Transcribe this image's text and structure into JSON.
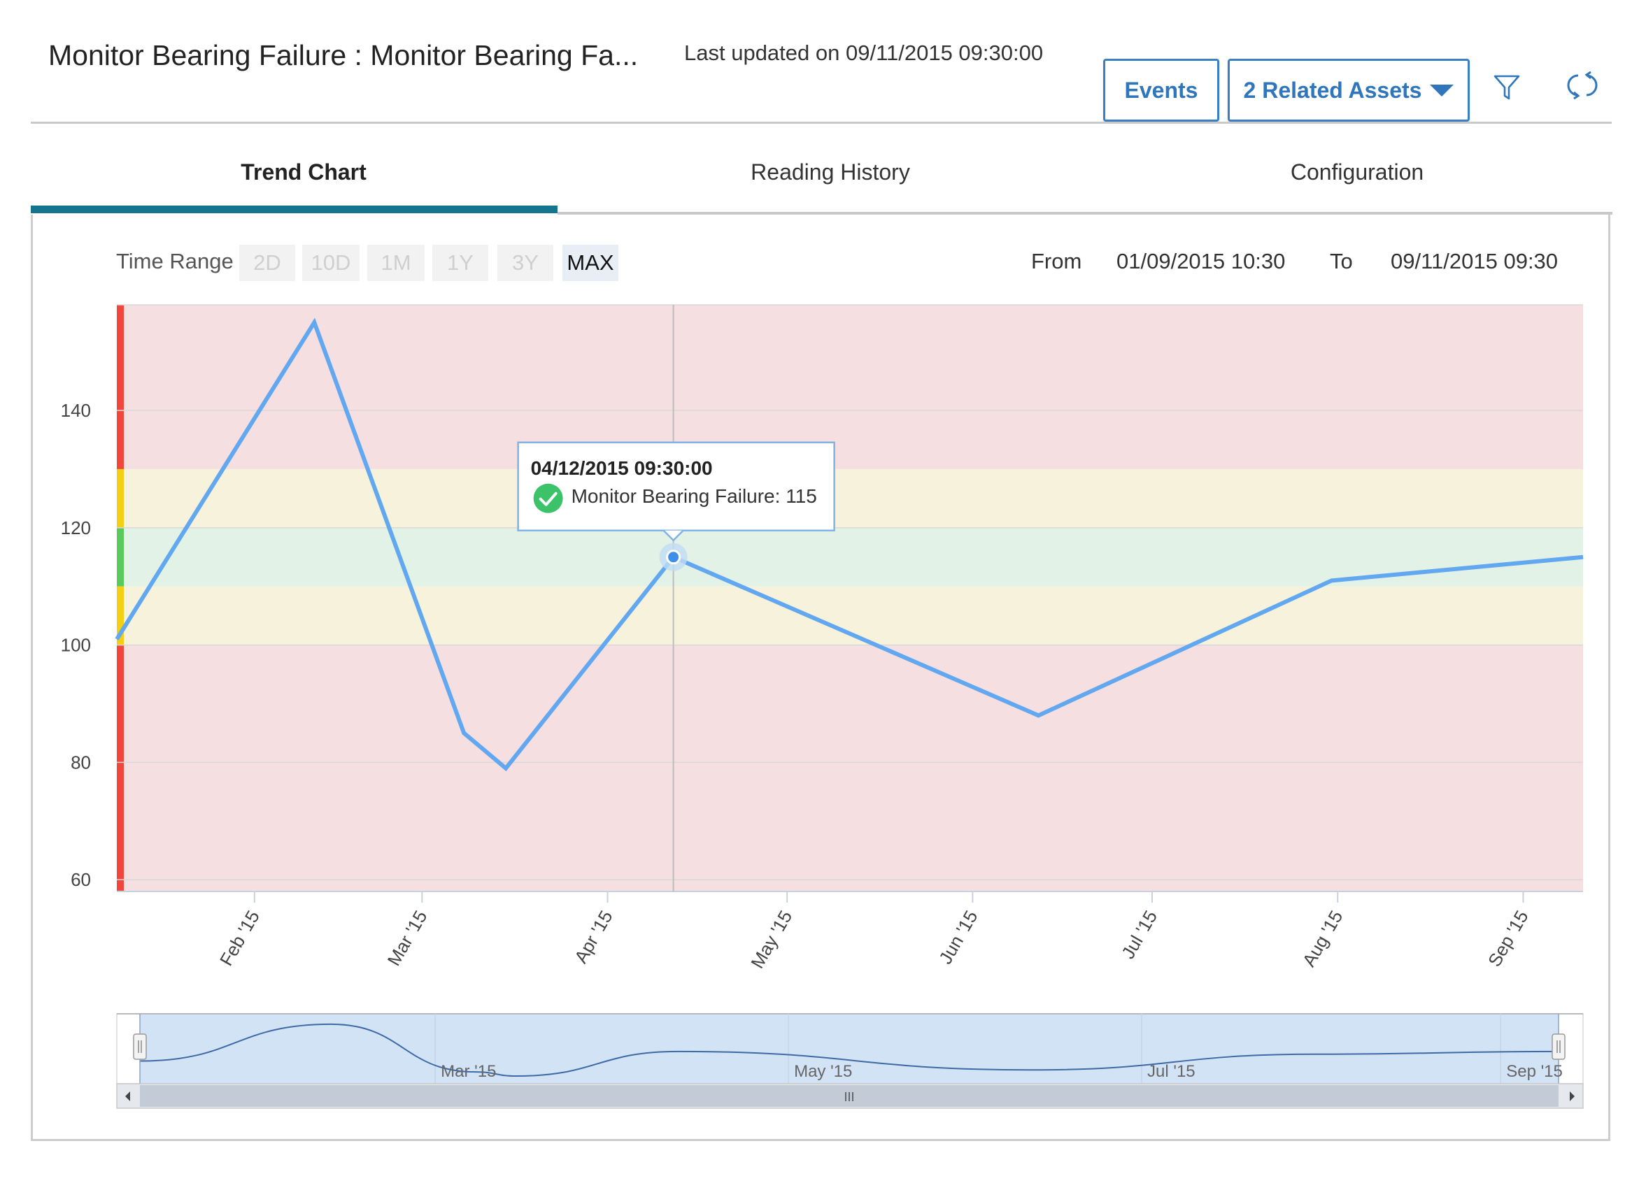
{
  "header": {
    "title": "Monitor Bearing Failure : Monitor Bearing Fa...",
    "last_updated": "Last updated on 09/11/2015 09:30:00",
    "events_label": "Events",
    "related_assets_label": "2 Related Assets",
    "filter_icon": "filter-icon",
    "refresh_icon": "refresh-icon"
  },
  "tabs": [
    {
      "label": "Trend Chart",
      "active": true
    },
    {
      "label": "Reading History",
      "active": false
    },
    {
      "label": "Configuration",
      "active": false
    }
  ],
  "time_range": {
    "label": "Time Range",
    "options": [
      {
        "label": "2D",
        "active": false
      },
      {
        "label": "10D",
        "active": false
      },
      {
        "label": "1M",
        "active": false
      },
      {
        "label": "1Y",
        "active": false
      },
      {
        "label": "3Y",
        "active": false
      },
      {
        "label": "MAX",
        "active": true
      }
    ],
    "from_label": "From",
    "from_value": "01/09/2015 10:30",
    "to_label": "To",
    "to_value": "09/11/2015 09:30"
  },
  "tooltip": {
    "date": "04/12/2015 09:30:00",
    "text": "Monitor Bearing Failure: 115",
    "status_icon": "check-circle-icon"
  },
  "colors": {
    "accent": "#15758f",
    "button_text": "#2f76bd",
    "line": "#62a8f0",
    "zone_alarm": "#f6dfe0",
    "zone_warning": "#f7f2dc",
    "zone_normal": "#e3f2e6",
    "bar_alarm": "#f0463c",
    "bar_warning": "#f5cf14",
    "bar_normal": "#58cb5c"
  },
  "chart_data": {
    "type": "line",
    "series": [
      {
        "name": "Monitor Bearing Failure",
        "x": [
          "2015-01-09",
          "2015-02-11",
          "2015-03-08",
          "2015-03-15",
          "2015-04-12",
          "2015-06-12",
          "2015-07-31",
          "2015-09-11"
        ],
        "values": [
          101,
          155,
          85,
          79,
          115,
          88,
          111,
          115
        ]
      }
    ],
    "y_ticks": [
      "60",
      "80",
      "100",
      "120",
      "140"
    ],
    "x_ticks": [
      "Feb '15",
      "Mar '15",
      "Apr '15",
      "May '15",
      "Jun '15",
      "Jul '15",
      "Aug '15",
      "Sep '15"
    ],
    "ylim": [
      58,
      158
    ],
    "xlim": [
      "2015-01-09",
      "2015-09-11"
    ],
    "zones": [
      {
        "from": 130,
        "to": 158,
        "level": "alarm"
      },
      {
        "from": 120,
        "to": 130,
        "level": "warning"
      },
      {
        "from": 110,
        "to": 120,
        "level": "normal"
      },
      {
        "from": 100,
        "to": 110,
        "level": "warning"
      },
      {
        "from": 58,
        "to": 100,
        "level": "alarm"
      }
    ],
    "grid": true,
    "navigator_ticks": [
      "Mar '15",
      "May '15",
      "Jul '15",
      "Sep '15"
    ],
    "navigator_handle_label": "III"
  }
}
